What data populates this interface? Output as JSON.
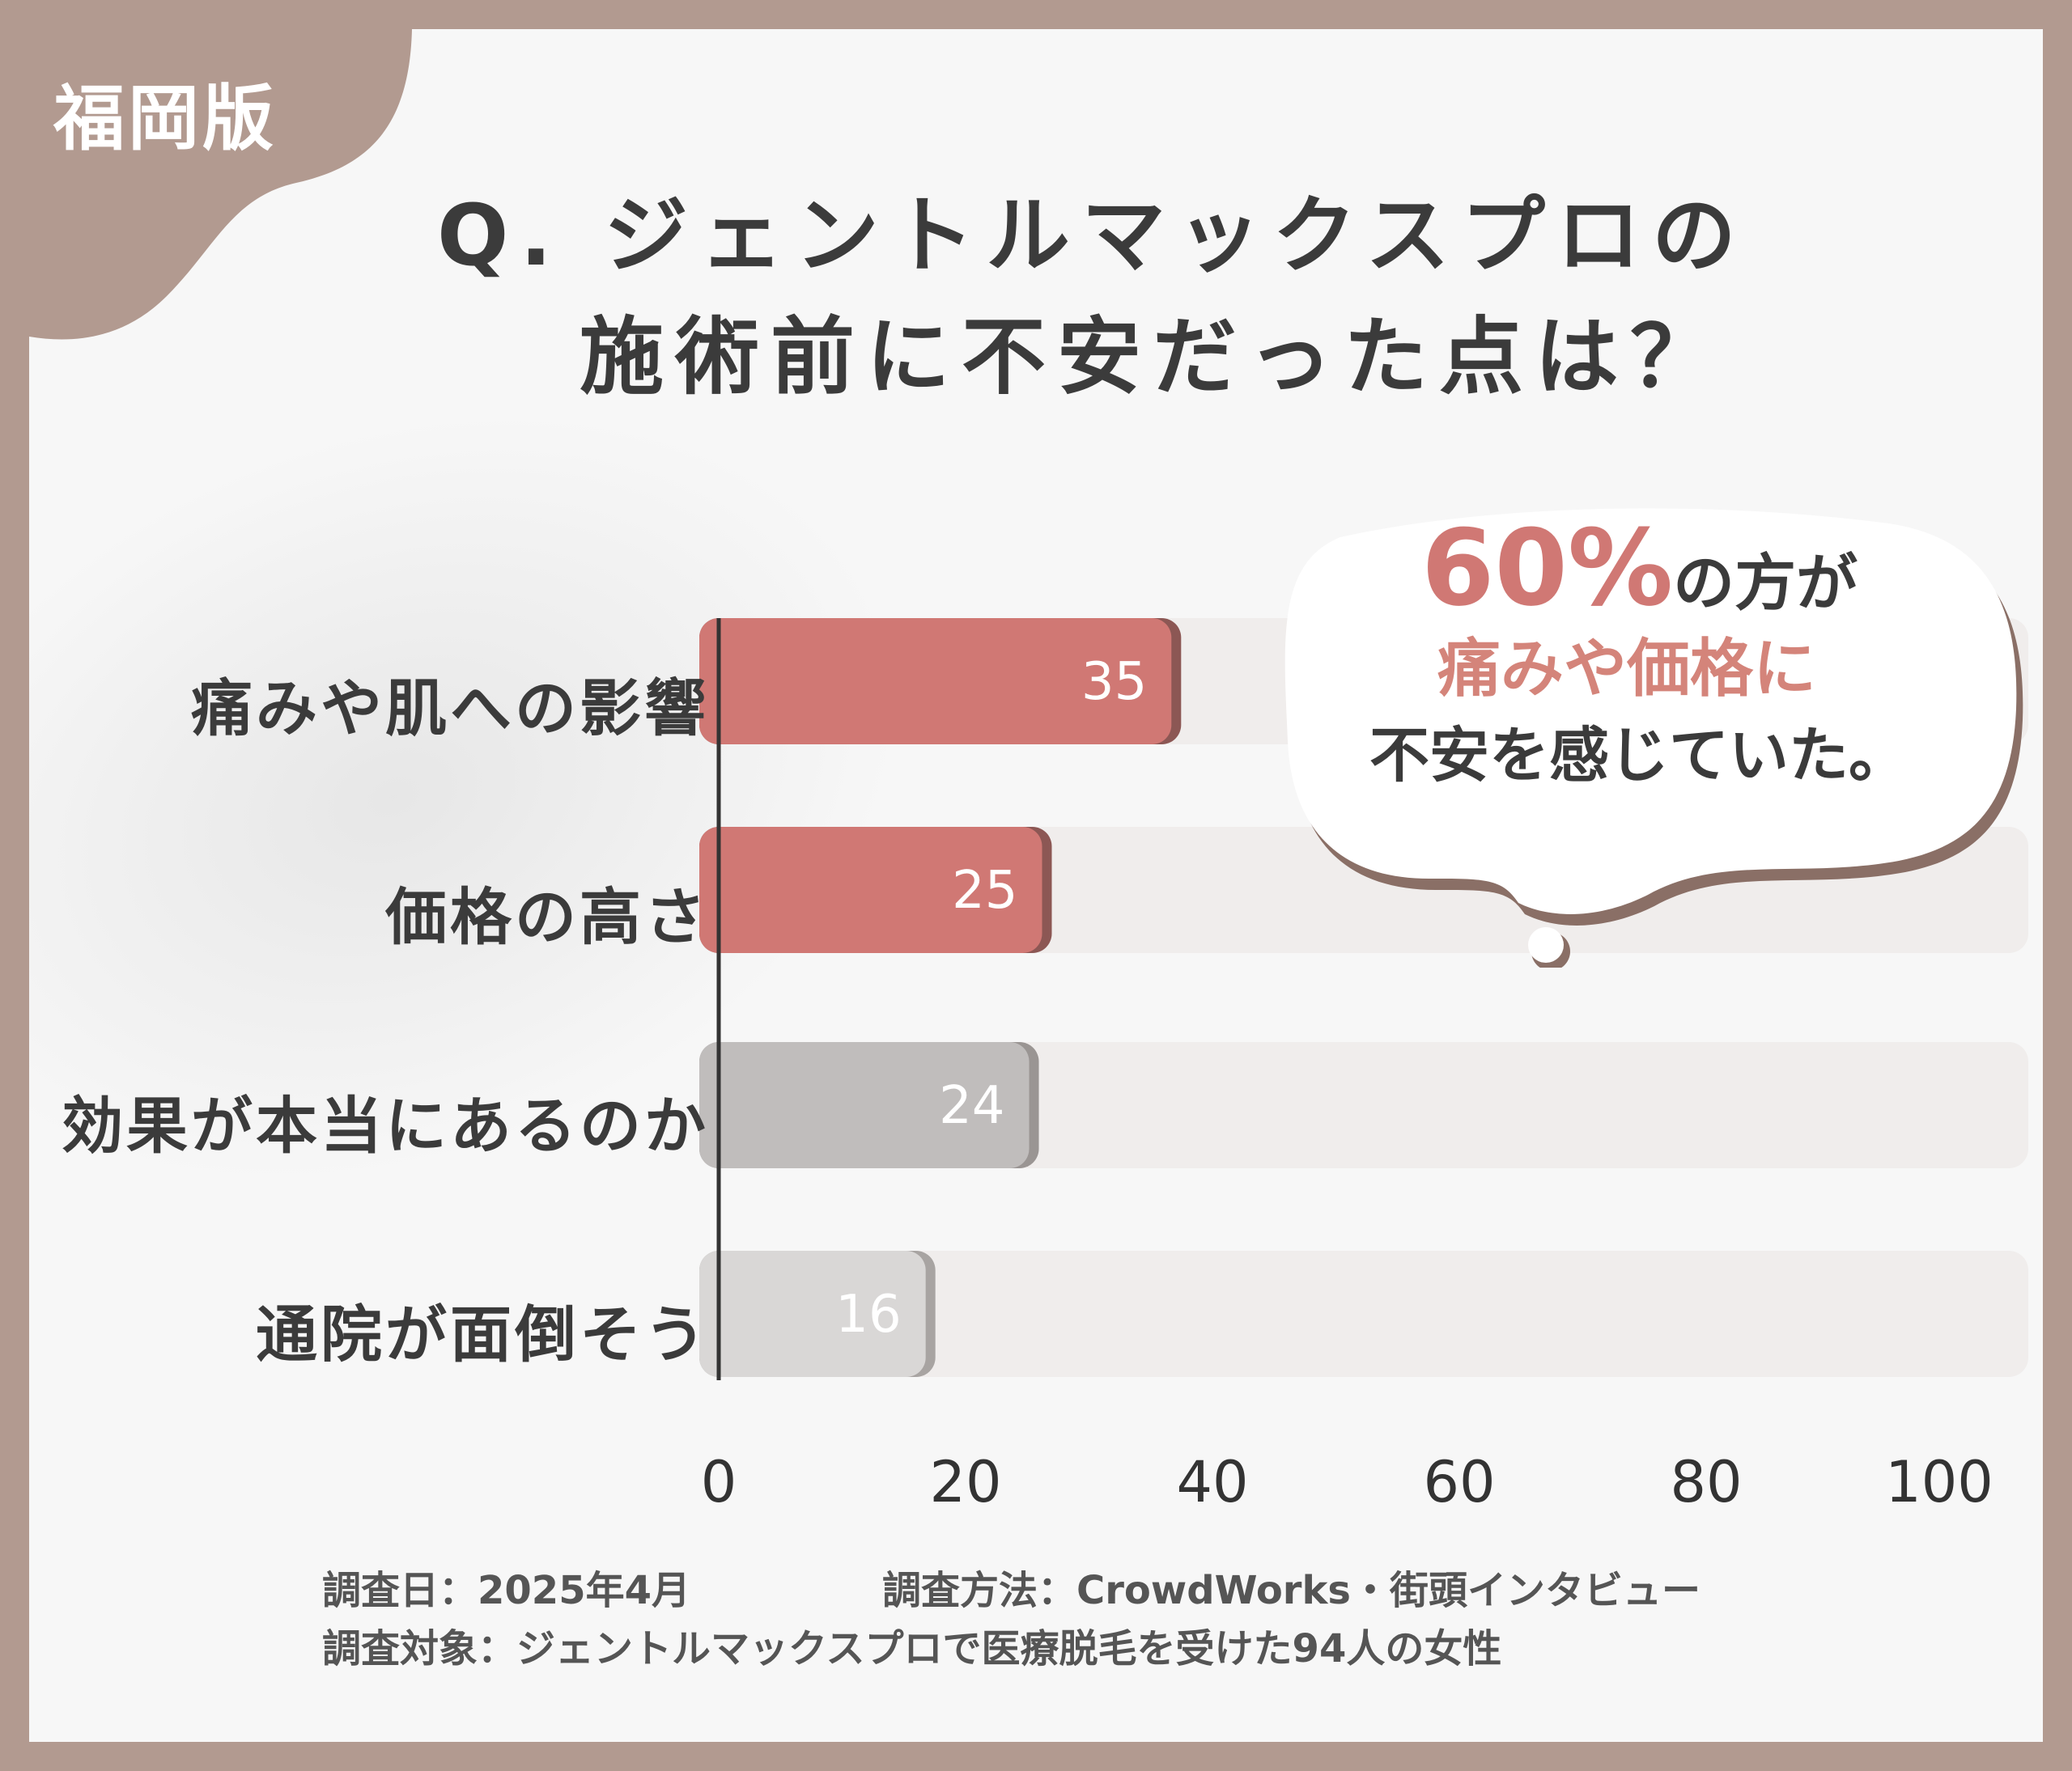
{
  "badge": "福岡版",
  "title": {
    "line1": "Q. ジェントルマックスプロの",
    "line2": "施術前に不安だった点は？"
  },
  "callout": {
    "highlight": "60%",
    "line1_suffix": "の方が",
    "line2": "痛みや価格に",
    "line3": "不安を感じていた。"
  },
  "colors": {
    "frame": "#b29a90",
    "accent_red": "#d07874",
    "gray_dark": "#c0bdbc",
    "gray_light": "#d9d7d6",
    "track": "#f0edec",
    "highlight_text": "#d07874",
    "callout_text": "#d4847a"
  },
  "chart_data": {
    "type": "bar",
    "orientation": "horizontal",
    "categories": [
      "痛みや肌への影響",
      "価格の高さ",
      "効果が本当にあるのか",
      "通院が面倒そう"
    ],
    "values": [
      35,
      25,
      24,
      16
    ],
    "value_labels": [
      "35",
      "25",
      "24",
      "16"
    ],
    "xlim": [
      0,
      100
    ],
    "x_ticks": [
      "0",
      "20",
      "40",
      "60",
      "80",
      "100"
    ],
    "grid": false
  },
  "footer": {
    "date": "調査日：2025年4月",
    "method": "調査方法：CrowdWorks・街頭インタビュー",
    "target": "調査対象：ジェントルマックスプロで医療脱毛を受けた94人の女性"
  }
}
